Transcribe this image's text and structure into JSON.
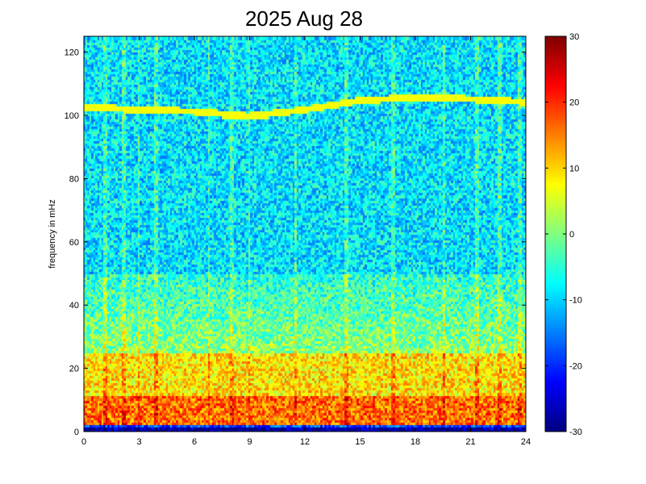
{
  "chart_data": {
    "type": "heatmap",
    "title": "2025 Aug 28",
    "xlabel": "",
    "ylabel": "frequency in mHz",
    "xlim": [
      0,
      24
    ],
    "ylim": [
      0,
      125
    ],
    "x_ticks": [
      0,
      3,
      6,
      9,
      12,
      15,
      18,
      21,
      24
    ],
    "y_ticks": [
      0,
      20,
      40,
      60,
      80,
      100,
      120
    ],
    "colorbar": {
      "colormap": "jet",
      "clim": [
        -30,
        30
      ],
      "ticks": [
        -30,
        -20,
        -10,
        0,
        10,
        20,
        30
      ]
    },
    "features": {
      "harmonic_line": [
        [
          0,
          103
        ],
        [
          3,
          102
        ],
        [
          6,
          101.5
        ],
        [
          9,
          100
        ],
        [
          12,
          102
        ],
        [
          15,
          105
        ],
        [
          18,
          106
        ],
        [
          21,
          105.5
        ],
        [
          24,
          104.5
        ]
      ],
      "vertical_streaks_hours": [
        1.2,
        2.2,
        3.0,
        3.9,
        6.8,
        8.1,
        9.0,
        11.5,
        14.3,
        16.8,
        19.6,
        21.4,
        22.6,
        23.7
      ],
      "bands": [
        {
          "freq_from": 0,
          "freq_to": 1.5,
          "level_db": -28
        },
        {
          "freq_from": 1.5,
          "freq_to": 2.5,
          "level_db": -18
        },
        {
          "freq_from": 2.5,
          "freq_to": 12,
          "level_db": 16
        },
        {
          "freq_from": 12,
          "freq_to": 25,
          "level_db": 9
        },
        {
          "freq_from": 25,
          "freq_to": 50,
          "level_db": 1
        },
        {
          "freq_from": 50,
          "freq_to": 125,
          "level_db": -9
        }
      ]
    }
  }
}
